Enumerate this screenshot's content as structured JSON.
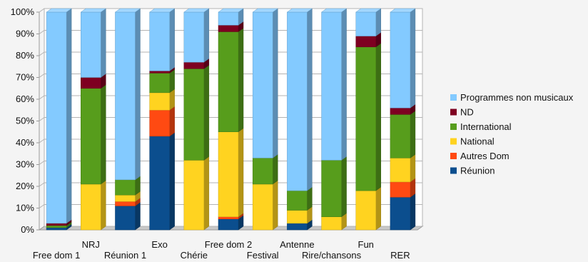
{
  "chart_data": {
    "type": "bar",
    "stacked": true,
    "three_d": true,
    "categories": [
      "Free dom 1",
      "NRJ",
      "Réunion 1",
      "Exo",
      "Chérie",
      "Free dom 2",
      "Festival",
      "Antenne",
      "Rire/chansons",
      "Fun",
      "RER"
    ],
    "ylim": [
      0,
      100
    ],
    "y_ticks": [
      "0%",
      "10%",
      "20%",
      "30%",
      "40%",
      "50%",
      "60%",
      "70%",
      "80%",
      "90%",
      "100%"
    ],
    "grid": true,
    "legend_position": "right",
    "series": [
      {
        "name": "Réunion",
        "color": "#0b4e8e",
        "values": [
          1,
          0,
          11,
          43,
          0,
          5,
          0,
          3,
          0,
          0,
          15
        ]
      },
      {
        "name": "Autres Dom",
        "color": "#ff4a12",
        "values": [
          0,
          0,
          2,
          12,
          0,
          1,
          0,
          0,
          0,
          0,
          7
        ]
      },
      {
        "name": "National",
        "color": "#ffd320",
        "values": [
          0,
          21,
          3,
          8,
          32,
          39,
          21,
          6,
          6,
          18,
          11
        ]
      },
      {
        "name": "International",
        "color": "#579d1c",
        "values": [
          1,
          44,
          7,
          9,
          42,
          46,
          12,
          9,
          26,
          66,
          20
        ]
      },
      {
        "name": "ND",
        "color": "#7e0021",
        "values": [
          1,
          5,
          0,
          1,
          3,
          3,
          0,
          0,
          0,
          5,
          3
        ]
      },
      {
        "name": "Programmes non musicaux",
        "color": "#83caff",
        "values": [
          97,
          30,
          77,
          27,
          23,
          6,
          67,
          82,
          68,
          11,
          44
        ]
      }
    ]
  }
}
